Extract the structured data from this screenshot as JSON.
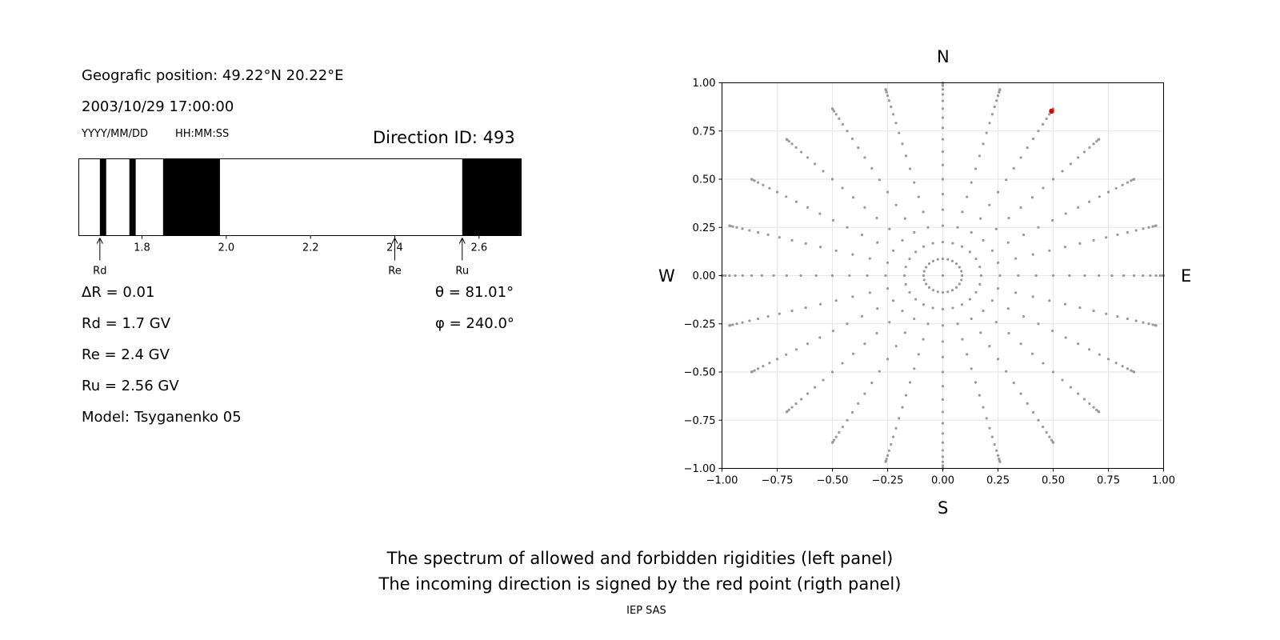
{
  "header": {
    "position": "Geografic position: 49.22°N 20.22°E",
    "datetime": "2003/10/29 17:00:00",
    "date_format": "YYYY/MM/DD",
    "time_format": "HH:MM:SS",
    "direction_id": "Direction ID: 493"
  },
  "stats": {
    "delta_r": "ΔR = 0.01",
    "rd": "Rd = 1.7 GV",
    "re": "Re = 2.4 GV",
    "ru": "Ru = 2.56 GV",
    "model": "Model: Tsyganenko 05",
    "theta": "θ = 81.01°",
    "phi": "φ = 240.0°"
  },
  "compass": {
    "north": "N",
    "south": "S",
    "west": "W",
    "east": "E"
  },
  "caption": {
    "line1": "The spectrum of allowed and forbidden rigidities (left panel)",
    "line2": "The incoming direction is signed by the red point (rigth panel)"
  },
  "footer": "IEP SAS",
  "chart_data": [
    {
      "type": "bar",
      "xlim": [
        1.65,
        2.7
      ],
      "xticks": [
        1.8,
        2.0,
        2.2,
        2.4,
        2.6
      ],
      "xtick_labels": [
        "1.8",
        "2.0",
        "2.2",
        "2.4",
        "2.6"
      ],
      "forbidden_bands": [
        [
          1.7,
          1.715
        ],
        [
          1.77,
          1.785
        ],
        [
          1.85,
          1.985
        ],
        [
          2.56,
          2.7
        ]
      ],
      "markers": [
        {
          "label": "Rd",
          "value": 1.7
        },
        {
          "label": "Re",
          "value": 2.4
        },
        {
          "label": "Ru",
          "value": 2.56
        }
      ]
    },
    {
      "type": "scatter",
      "xlim": [
        -1.0,
        1.0
      ],
      "ylim": [
        -1.0,
        1.0
      ],
      "xticks": [
        -1.0,
        -0.75,
        -0.5,
        -0.25,
        0.0,
        0.25,
        0.5,
        0.75,
        1.0
      ],
      "xtick_labels": [
        "−1.00",
        "−0.75",
        "−0.50",
        "−0.25",
        "0.00",
        "0.25",
        "0.50",
        "0.75",
        "1.00"
      ],
      "yticks": [
        -1.0,
        -0.75,
        -0.5,
        -0.25,
        0.0,
        0.25,
        0.5,
        0.75,
        1.0
      ],
      "ytick_labels": [
        "−1.00",
        "−0.75",
        "−0.50",
        "−0.25",
        "0.00",
        "0.25",
        "0.50",
        "0.75",
        "1.00"
      ],
      "grid": true,
      "grid_points": {
        "azimuth_step_deg": 15,
        "zenith_step_deg": 5,
        "zenith_max_deg": 90,
        "projection": "sin(zenith)",
        "center_point": true,
        "color": "#999999"
      },
      "highlight": {
        "x": 0.4925,
        "y": 0.853,
        "color": "#e00000"
      }
    }
  ]
}
